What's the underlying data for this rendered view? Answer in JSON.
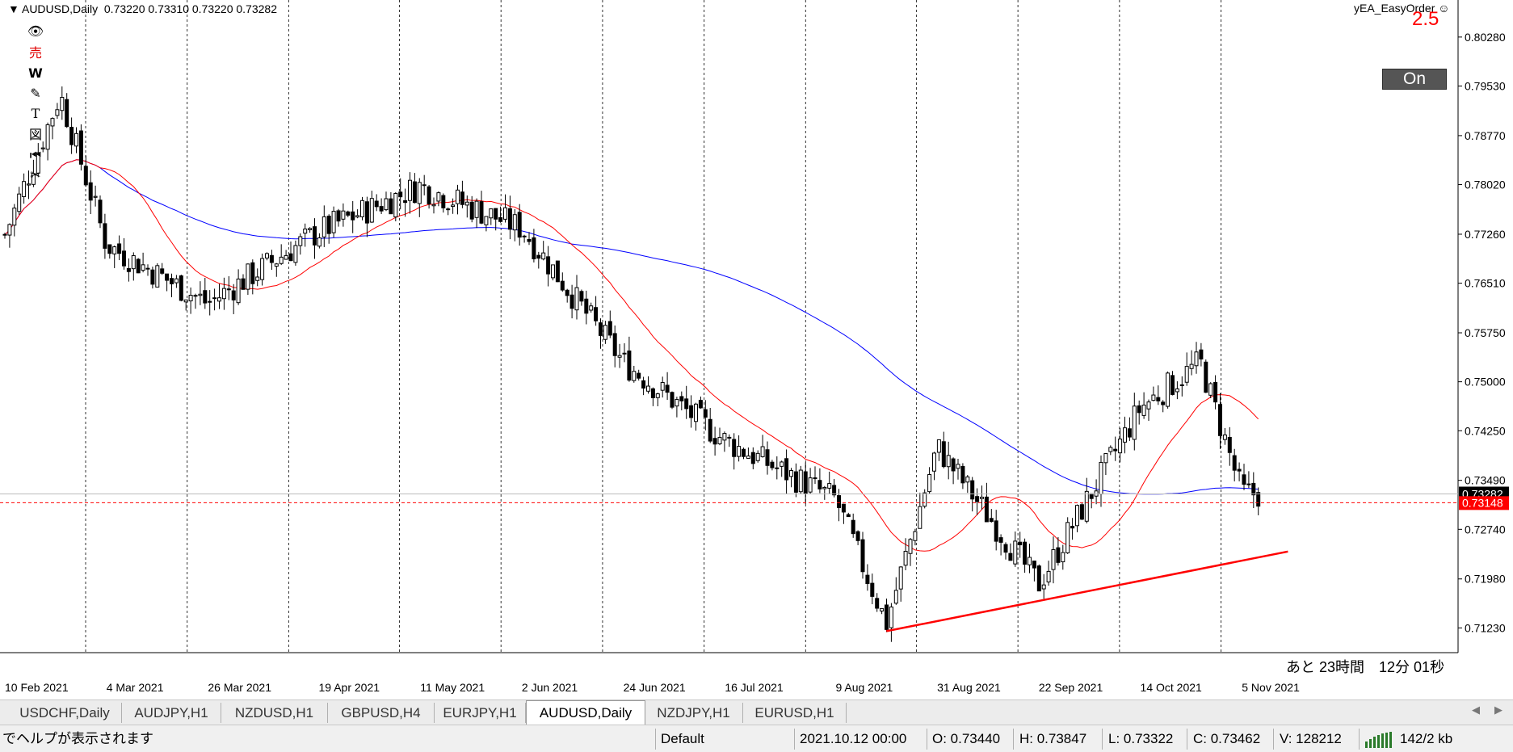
{
  "header": {
    "symbol_tf": "AUDUSD,Daily",
    "ohlc": "0.73220 0.73310 0.73220 0.73282"
  },
  "ea": {
    "label": "yEA_EasyOrder ☺",
    "lot": "2.5",
    "on_label": "On"
  },
  "toolbar_icons": [
    {
      "name": "eye-icon",
      "glyph": "👁"
    },
    {
      "name": "sell-icon",
      "glyph": "売"
    },
    {
      "name": "w-icon",
      "glyph": "W"
    },
    {
      "name": "pencil-icon",
      "glyph": "✎"
    },
    {
      "name": "text-icon",
      "glyph": "T"
    },
    {
      "name": "chart-icon",
      "glyph": "図"
    },
    {
      "name": "rewind-icon",
      "glyph": "⏮"
    },
    {
      "name": "scissors-icon",
      "glyph": "✂"
    }
  ],
  "price_axis": {
    "ticks": [
      "0.80280",
      "0.79530",
      "0.78770",
      "0.78020",
      "0.77260",
      "0.76510",
      "0.75750",
      "0.75000",
      "0.74250",
      "0.73490",
      "0.72740",
      "0.71980",
      "0.71230"
    ],
    "current_bid": "0.73282",
    "ask_line": "0.73148"
  },
  "time_axis": [
    "10 Feb 2021",
    "4 Mar 2021",
    "26 Mar 2021",
    "19 Apr 2021",
    "11 May 2021",
    "2 Jun 2021",
    "24 Jun 2021",
    "16 Jul 2021",
    "9 Aug 2021",
    "31 Aug 2021",
    "22 Sep 2021",
    "14 Oct 2021",
    "5 Nov 2021"
  ],
  "countdown": "あと 23時間　12分 01秒",
  "colors": {
    "ma_fast": "#ff0000",
    "ma_slow": "#0000ff",
    "trendline": "#ff0000",
    "bid_label_bg": "#000000",
    "ask_label_bg": "#ff0000",
    "grid": "#000000"
  },
  "chart_data": {
    "type": "candlestick",
    "title": "AUDUSD,Daily",
    "ylim": [
      0.7095,
      0.806
    ],
    "grid": "vertical-dotted",
    "indicators": [
      "moving-average-fast (red)",
      "moving-average-slow (blue)",
      "support trendline (red)"
    ],
    "close_trend": [
      {
        "x": "10 Feb 2021",
        "y": 0.7725
      },
      {
        "x": "22 Feb 2021",
        "y": 0.794
      },
      {
        "x": "4 Mar 2021",
        "y": 0.771
      },
      {
        "x": "26 Mar 2021",
        "y": 0.762
      },
      {
        "x": "19 Apr 2021",
        "y": 0.773
      },
      {
        "x": "11 May 2021",
        "y": 0.78
      },
      {
        "x": "2 Jun 2021",
        "y": 0.7735
      },
      {
        "x": "24 Jun 2021",
        "y": 0.753
      },
      {
        "x": "16 Jul 2021",
        "y": 0.741
      },
      {
        "x": "9 Aug 2021",
        "y": 0.732
      },
      {
        "x": "20 Aug 2021",
        "y": 0.713
      },
      {
        "x": "31 Aug 2021",
        "y": 0.74
      },
      {
        "x": "22 Sep 2021",
        "y": 0.719
      },
      {
        "x": "14 Oct 2021",
        "y": 0.746
      },
      {
        "x": "27 Oct 2021",
        "y": 0.753
      },
      {
        "x": "5 Nov 2021",
        "y": 0.733
      },
      {
        "x": "9 Nov 2021",
        "y": 0.7328
      }
    ],
    "trendline": [
      {
        "x": "20 Aug 2021",
        "y": 0.7118
      },
      {
        "x": "15 Nov 2021",
        "y": 0.724
      }
    ]
  },
  "tabs": [
    "USDCHF,Daily",
    "AUDJPY,H1",
    "NZDUSD,H1",
    "GBPUSD,H4",
    "EURJPY,H1",
    "AUDUSD,Daily",
    "NZDJPY,H1",
    "EURUSD,H1"
  ],
  "active_tab": "AUDUSD,Daily",
  "status": {
    "help": "でヘルプが表示されます",
    "profile": "Default",
    "time": "2021.10.12 00:00",
    "open": "O: 0.73440",
    "high": "H: 0.73847",
    "low": "L: 0.73322",
    "close": "C: 0.73462",
    "volume": "V: 128212",
    "traffic": "142/2 kb"
  }
}
